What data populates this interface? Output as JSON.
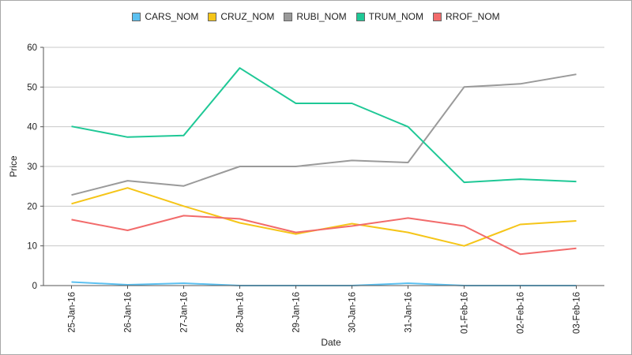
{
  "chart_data": {
    "type": "line",
    "xlabel": "Date",
    "ylabel": "Price",
    "ylim": [
      0,
      60
    ],
    "yticks": [
      0,
      10,
      20,
      30,
      40,
      50,
      60
    ],
    "grid": true,
    "legend_position": "top-center",
    "categories": [
      "25-Jan-16",
      "26-Jan-16",
      "27-Jan-16",
      "28-Jan-16",
      "29-Jan-16",
      "30-Jan-16",
      "31-Jan-16",
      "01-Feb-16",
      "02-Feb-16",
      "03-Feb-16"
    ],
    "series": [
      {
        "name": "CARS_NOM",
        "color": "#5bc0f0",
        "values": [
          0.9,
          0.2,
          0.6,
          0.0,
          0.0,
          0.0,
          0.6,
          0.0,
          0.0,
          0.0
        ]
      },
      {
        "name": "CRUZ_NOM",
        "color": "#f5c518",
        "values": [
          20.6,
          24.6,
          20.0,
          15.8,
          13.0,
          15.6,
          13.4,
          10.0,
          15.4,
          16.3
        ]
      },
      {
        "name": "RUBI_NOM",
        "color": "#9a9a9a",
        "values": [
          22.8,
          26.4,
          25.1,
          30.0,
          30.0,
          31.5,
          31.0,
          50.0,
          50.8,
          53.2
        ]
      },
      {
        "name": "TRUM_NOM",
        "color": "#1fc896",
        "values": [
          40.1,
          37.4,
          37.8,
          54.8,
          45.9,
          45.9,
          40.0,
          26.0,
          26.8,
          26.2
        ]
      },
      {
        "name": "RROF_NOM",
        "color": "#f26b6b",
        "values": [
          16.6,
          13.9,
          17.6,
          16.8,
          13.4,
          15.0,
          17.0,
          15.0,
          7.9,
          9.4
        ]
      }
    ]
  }
}
